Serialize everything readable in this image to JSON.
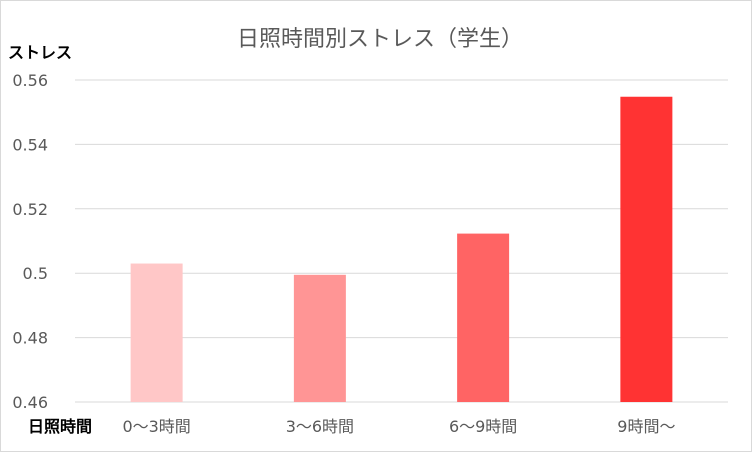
{
  "chart_data": {
    "type": "bar",
    "title": "日照時間別ストレス（学生）",
    "ylabel": "ストレス",
    "xlabel": "日照時間",
    "categories": [
      "0～3時間",
      "3～6時間",
      "6～9時間",
      "9時間～"
    ],
    "values": [
      0.503,
      0.4995,
      0.5123,
      0.5548
    ],
    "ylim": [
      0.46,
      0.56
    ],
    "yticks": [
      "0.46",
      "0.48",
      "0.5",
      "0.52",
      "0.54",
      "0.56"
    ],
    "ytick_values": [
      0.46,
      0.48,
      0.5,
      0.52,
      0.54,
      0.56
    ],
    "bar_colors": [
      "#ffc7c7",
      "#ff9595",
      "#ff6464",
      "#ff3333"
    ],
    "grid": true,
    "legend": "none"
  }
}
